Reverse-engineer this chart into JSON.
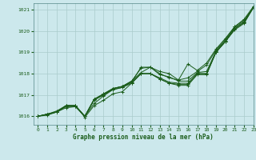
{
  "title": "Graphe pression niveau de la mer (hPa)",
  "bg_color": "#cce8ec",
  "grid_color": "#aacccc",
  "line_color": "#1a5c1a",
  "xlim": [
    -0.5,
    23
  ],
  "ylim": [
    1015.6,
    1021.3
  ],
  "xticks": [
    0,
    1,
    2,
    3,
    4,
    5,
    6,
    7,
    8,
    9,
    10,
    11,
    12,
    13,
    14,
    15,
    16,
    17,
    18,
    19,
    20,
    21,
    22,
    23
  ],
  "yticks": [
    1016,
    1017,
    1018,
    1019,
    1020,
    1021
  ],
  "lines": [
    [
      1016.0,
      1016.1,
      1016.2,
      1016.5,
      1016.5,
      1015.95,
      1016.5,
      1016.75,
      1017.05,
      1017.15,
      1017.55,
      1018.0,
      1018.0,
      1017.75,
      1017.55,
      1017.45,
      1017.45,
      1017.95,
      1017.95,
      1019.0,
      1019.5,
      1020.05,
      1020.35,
      1021.1
    ],
    [
      1016.0,
      1016.1,
      1016.25,
      1016.5,
      1016.5,
      1016.0,
      1016.8,
      1017.05,
      1017.3,
      1017.4,
      1017.65,
      1018.05,
      1018.3,
      1017.95,
      1017.85,
      1017.65,
      1017.65,
      1018.05,
      1018.1,
      1019.05,
      1019.55,
      1020.15,
      1020.45,
      1021.1
    ],
    [
      1016.0,
      1016.1,
      1016.2,
      1016.5,
      1016.5,
      1016.0,
      1016.8,
      1017.05,
      1017.3,
      1017.4,
      1017.65,
      1018.25,
      1018.3,
      1018.0,
      1017.8,
      1017.7,
      1017.8,
      1018.1,
      1018.4,
      1019.1,
      1019.6,
      1020.2,
      1020.5,
      1021.1
    ],
    [
      1016.0,
      1016.1,
      1016.2,
      1016.45,
      1016.45,
      1016.0,
      1016.75,
      1017.0,
      1017.25,
      1017.35,
      1017.6,
      1018.0,
      1018.0,
      1017.75,
      1017.55,
      1017.5,
      1017.5,
      1018.0,
      1018.0,
      1019.0,
      1019.5,
      1020.1,
      1020.4,
      1021.1
    ],
    [
      1016.0,
      1016.05,
      1016.2,
      1016.4,
      1016.45,
      1016.0,
      1016.6,
      1016.95,
      1017.25,
      1017.35,
      1017.55,
      1018.0,
      1018.0,
      1017.8,
      1017.6,
      1017.55,
      1017.55,
      1018.0,
      1018.0,
      1019.0,
      1019.5,
      1020.1,
      1020.4,
      1021.1
    ]
  ],
  "top_line": [
    1016.0,
    1016.1,
    1016.2,
    1016.5,
    1016.5,
    1016.0,
    1016.8,
    1017.0,
    1017.3,
    1017.4,
    1017.6,
    1018.3,
    1018.3,
    1018.1,
    1018.0,
    1017.7,
    1018.45,
    1018.15,
    1018.5,
    1019.15,
    1019.65,
    1020.2,
    1020.55,
    1021.15
  ]
}
